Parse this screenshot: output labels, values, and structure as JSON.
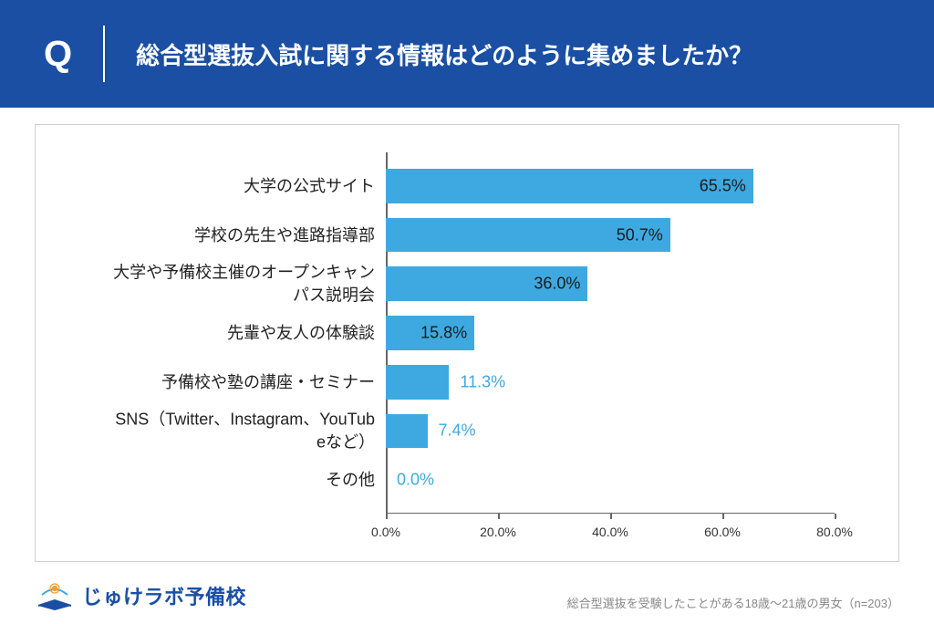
{
  "header": {
    "q_mark": "Q",
    "question": "総合型選抜入試に関する情報はどのように集めましたか？"
  },
  "chart": {
    "type": "bar-horizontal",
    "categories": [
      "大学の公式サイト",
      "学校の先生や進路指導部",
      "大学や予備校主催のオープンキャンパス説明会",
      "先輩や友人の体験談",
      "予備校や塾の講座・セミナー",
      "SNS（Twitter、Instagram、YouTubeなど）",
      "その他"
    ],
    "values": [
      65.5,
      50.7,
      36.0,
      15.8,
      11.3,
      7.4,
      0.0
    ],
    "value_labels": [
      "65.5%",
      "50.7%",
      "36.0%",
      "15.8%",
      "11.3%",
      "7.4%",
      "0.0%"
    ],
    "label_inside": [
      true,
      true,
      true,
      true,
      false,
      false,
      false
    ],
    "bar_color": "#3ea9e0",
    "label_inside_color": "#1a1a1a",
    "label_outside_color": "#3ea9e0",
    "xlim": [
      0,
      80
    ],
    "xtick_step": 20,
    "xtick_labels": [
      "0.0%",
      "20.0%",
      "40.0%",
      "60.0%",
      "80.0%"
    ],
    "label_fontsize": 18,
    "tick_fontsize": 14,
    "axis_color": "#666666",
    "background_color": "#ffffff",
    "border_color": "#d0d0d0",
    "cat_two_line": [
      false,
      false,
      true,
      false,
      false,
      true,
      false
    ],
    "cat_line1": [
      "大学の公式サイト",
      "学校の先生や進路指導部",
      "大学や予備校主催のオープンキャン",
      "先輩や友人の体験談",
      "予備校や塾の講座・セミナー",
      "SNS（Twitter、Instagram、YouTub",
      "その他"
    ],
    "cat_line2": [
      "",
      "",
      "パス説明会",
      "",
      "",
      "eなど）",
      ""
    ]
  },
  "logo": {
    "text": "じゅけラボ予備校"
  },
  "note": "総合型選抜を受験したことがある18歳～21歳の男女（n=203）",
  "colors": {
    "header_bg": "#1a4fa3",
    "header_text": "#ffffff"
  }
}
